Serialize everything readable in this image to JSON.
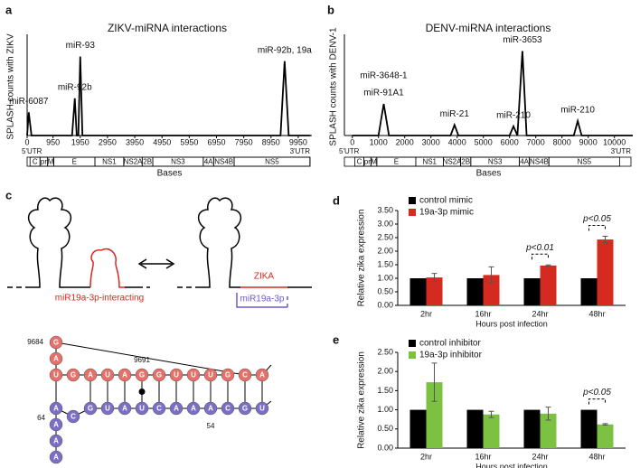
{
  "chart_data": [
    {
      "type": "line",
      "panel": "a",
      "title": "ZIKV-miRNA interactions",
      "y_label": "SPLASH counts with ZIKV",
      "x_label": "Bases",
      "x": [
        0,
        60,
        160,
        1650,
        1750,
        1820,
        1880,
        1950,
        2030,
        9300,
        9450,
        9600,
        10400
      ],
      "values": [
        0,
        2.5,
        0,
        0,
        4,
        0,
        0,
        8.5,
        0,
        0,
        8,
        0,
        0
      ],
      "xlim": [
        0,
        10450
      ],
      "xticks": [
        0,
        950,
        1950,
        2950,
        3950,
        4950,
        5950,
        6950,
        7950,
        8950,
        9950
      ],
      "ylim": [
        0,
        10.5
      ],
      "color": "#000000",
      "annotations": [
        {
          "text": "miR-6087",
          "x": 60,
          "y": 2.5
        },
        {
          "text": "miR-92b",
          "x": 1750,
          "y": 4
        },
        {
          "text": "miR-93",
          "x": 1950,
          "y": 8.5
        },
        {
          "text": "miR-92b, 19a",
          "x": 9450,
          "y": 8
        }
      ],
      "genome_map": {
        "left": "5'UTR",
        "right": "3'UTR",
        "regions": [
          {
            "label": "C",
            "start": 107,
            "end": 473
          },
          {
            "label": "pr",
            "start": 473,
            "end": 752
          },
          {
            "label": "M",
            "start": 752,
            "end": 977
          },
          {
            "label": "E",
            "start": 977,
            "end": 2489
          },
          {
            "label": "NS1",
            "start": 2489,
            "end": 3545
          },
          {
            "label": "NS2A",
            "start": 3545,
            "end": 4223
          },
          {
            "label": "2B",
            "start": 4223,
            "end": 4613
          },
          {
            "label": "NS3",
            "start": 4613,
            "end": 6464
          },
          {
            "label": "4A",
            "start": 6464,
            "end": 6845
          },
          {
            "label": "NS4B",
            "start": 6845,
            "end": 7598
          },
          {
            "label": "NS5",
            "start": 7598,
            "end": 10376
          }
        ]
      }
    },
    {
      "type": "line",
      "panel": "b",
      "title": "DENV-miRNA interactions",
      "y_label": "SPLASH counts with DENV-1",
      "x_label": "Bases",
      "x": [
        0,
        1000,
        1200,
        1400,
        3750,
        3900,
        4050,
        6000,
        6150,
        6300,
        6490,
        6650,
        8450,
        8600,
        8750,
        10700
      ],
      "values": [
        0,
        0,
        12,
        0,
        0,
        4,
        0,
        0,
        3.5,
        0,
        32,
        0,
        0,
        5.5,
        0,
        0
      ],
      "xlim": [
        -300,
        10700
      ],
      "xticks": [
        0,
        1000,
        2000,
        3000,
        4000,
        5000,
        6000,
        7000,
        8000,
        9000,
        10000
      ],
      "ylim": [
        0,
        37
      ],
      "color": "#000000",
      "annotations": [
        {
          "text": "miR-3648-1",
          "x": 1200,
          "y": 12
        },
        {
          "text": "miR-91A1",
          "x": 1200,
          "y": 12
        },
        {
          "text": "miR-21",
          "x": 3900,
          "y": 4
        },
        {
          "text": "miR-210",
          "x": 6150,
          "y": 3.5
        },
        {
          "text": "miR-3653",
          "x": 6490,
          "y": 32
        },
        {
          "text": "miR-210",
          "x": 8600,
          "y": 5.5
        }
      ],
      "genome_map": {
        "left": "5'UTR",
        "right": "3'UTR",
        "regions": [
          {
            "label": "C",
            "start": 97,
            "end": 438
          },
          {
            "label": "pr",
            "start": 438,
            "end": 711
          },
          {
            "label": "M",
            "start": 711,
            "end": 936
          },
          {
            "label": "E",
            "start": 936,
            "end": 2421
          },
          {
            "label": "NS1",
            "start": 2421,
            "end": 3477
          },
          {
            "label": "NS2A",
            "start": 3477,
            "end": 4131
          },
          {
            "label": "2B",
            "start": 4131,
            "end": 4521
          },
          {
            "label": "NS3",
            "start": 4521,
            "end": 6375
          },
          {
            "label": "4A",
            "start": 6375,
            "end": 6756
          },
          {
            "label": "NS4B",
            "start": 6756,
            "end": 7500
          },
          {
            "label": "NS5",
            "start": 7500,
            "end": 10200
          }
        ]
      }
    },
    {
      "type": "bar",
      "panel": "d",
      "y_label": "Relative zika expression",
      "x_label": "Hours post infection",
      "categories": [
        "2hr",
        "16hr",
        "24hr",
        "48hr"
      ],
      "series": [
        {
          "name": "control mimic",
          "color": "#000000",
          "values": [
            1,
            1,
            1,
            1
          ]
        },
        {
          "name": "19a-3p mimic",
          "color": "#d42a20",
          "values": [
            1.03,
            1.12,
            1.47,
            2.43
          ],
          "errors": [
            0.15,
            0.3,
            0.02,
            0.12
          ]
        }
      ],
      "ylim": [
        0,
        3.5
      ],
      "yticks": [
        {
          "value": 0,
          "label": "0.00"
        },
        {
          "value": 0.5,
          "label": "0.50"
        },
        {
          "value": 1,
          "label": "1.00"
        },
        {
          "value": 1.5,
          "label": "1.50"
        },
        {
          "value": 2,
          "label": "2.00"
        },
        {
          "value": 2.5,
          "label": "2.50"
        },
        {
          "value": 3,
          "label": "3.00"
        },
        {
          "value": 3.5,
          "label": "3.50"
        }
      ],
      "annotations": [
        {
          "text": "p<0.01",
          "category": "24hr"
        },
        {
          "text": "p<0.05",
          "category": "48hr"
        }
      ]
    },
    {
      "type": "bar",
      "panel": "e",
      "y_label": "Relative zika expression",
      "x_label": "Hours post infection",
      "categories": [
        "2hr",
        "16hr",
        "24hr",
        "48hr"
      ],
      "series": [
        {
          "name": "control inhibitor",
          "color": "#000000",
          "values": [
            1,
            1,
            1,
            1
          ]
        },
        {
          "name": "19a-3p inhibitor",
          "color": "#7dc142",
          "values": [
            1.72,
            0.88,
            0.9,
            0.62
          ],
          "errors": [
            0.5,
            0.08,
            0.17,
            0.02
          ]
        }
      ],
      "ylim": [
        0,
        2.5
      ],
      "yticks": [
        {
          "value": 0,
          "label": "0.00"
        },
        {
          "value": 0.5,
          "label": "0.50"
        },
        {
          "value": 1,
          "label": "1.00"
        },
        {
          "value": 1.5,
          "label": "1.50"
        },
        {
          "value": 2,
          "label": "2.00"
        },
        {
          "value": 2.5,
          "label": "2.50"
        }
      ],
      "annotations": [
        {
          "text": "p<0.05",
          "category": "48hr"
        }
      ]
    }
  ],
  "diagram": {
    "panel": "c",
    "interacting_label": "miR19a-3p-interacting",
    "target_label": "ZIKA",
    "mirna_label": "miR19a-3p",
    "zika_strand": [
      "G",
      "A",
      "U",
      "G",
      "A",
      "U",
      "A",
      "G",
      "G",
      "U",
      "U",
      "U",
      "G",
      "C",
      "A"
    ],
    "mirna_strand": [
      "A",
      "C",
      "G",
      "U",
      "A",
      "U",
      "C",
      "A",
      "A",
      "A",
      "C",
      "G",
      "U",
      "A",
      "A",
      "A"
    ],
    "position_labels": [
      "9684",
      "9691",
      "64",
      "54"
    ]
  }
}
